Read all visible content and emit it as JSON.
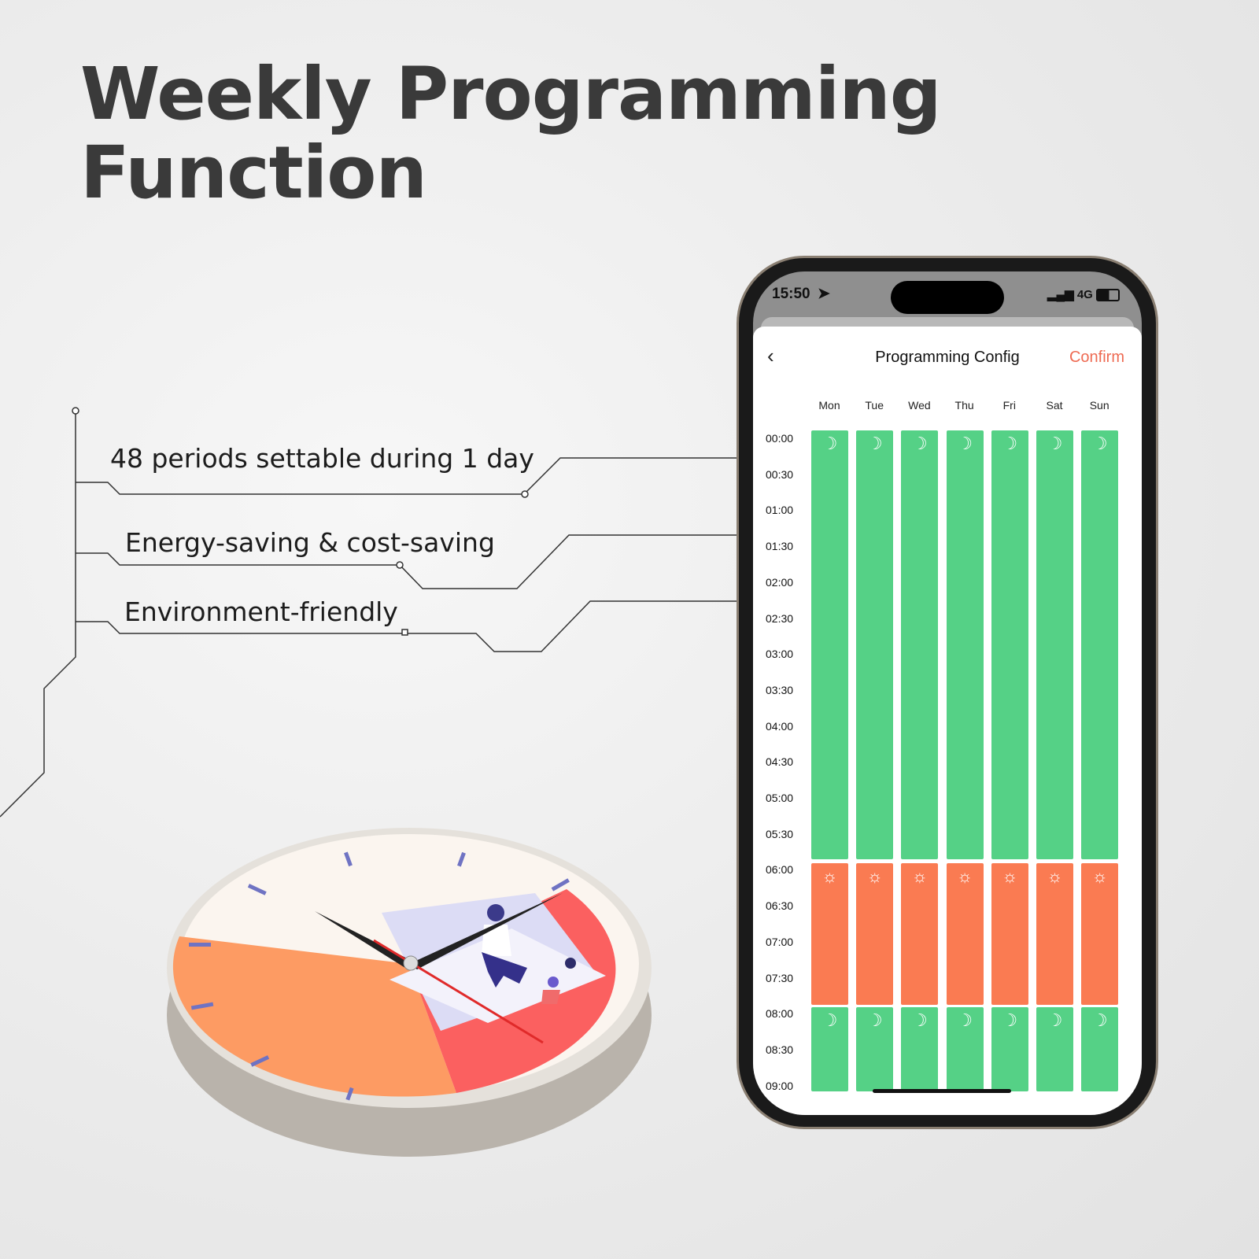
{
  "headline": {
    "line1": "Weekly Programming",
    "line2": "Function"
  },
  "features": [
    "48 periods settable during 1 day",
    "Energy-saving & cost-saving",
    "Environment-friendly"
  ],
  "phone": {
    "status_bar": {
      "time": "15:50",
      "network": "4G",
      "icons": [
        "location-arrow-icon",
        "signal-icon",
        "battery-icon"
      ]
    },
    "header": {
      "back_icon": "chevron-left-icon",
      "title": "Programming Config",
      "confirm_label": "Confirm",
      "confirm_color": "#ee6a52"
    },
    "days": [
      "Mon",
      "Tue",
      "Wed",
      "Thu",
      "Fri",
      "Sat",
      "Sun"
    ],
    "time_labels": [
      "00:00",
      "00:30",
      "01:00",
      "01:30",
      "02:00",
      "02:30",
      "03:00",
      "03:30",
      "04:00",
      "04:30",
      "05:00",
      "05:30",
      "06:00",
      "06:30",
      "07:00",
      "07:30",
      "08:00",
      "08:30",
      "09:00"
    ],
    "schedule": [
      {
        "start": "00:00",
        "end": "06:00",
        "mode": "sleep",
        "icon": "moon-icon",
        "color": "#55d186"
      },
      {
        "start": "06:00",
        "end": "08:00",
        "mode": "day",
        "icon": "sun-icon",
        "color": "#fa7b52"
      },
      {
        "start": "08:00",
        "end": "",
        "mode": "sleep",
        "icon": "moon-icon",
        "color": "#55d186"
      }
    ]
  }
}
